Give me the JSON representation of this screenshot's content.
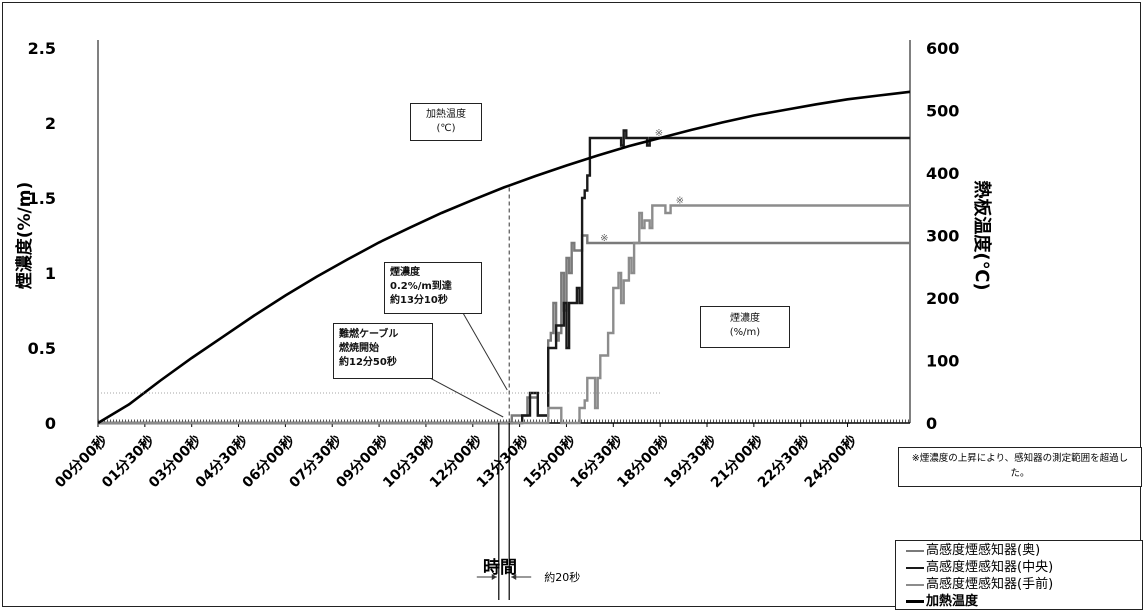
{
  "chart_data": {
    "type": "line",
    "title": "",
    "xlabel": "時間",
    "ylabel": "煙濃度(%/m)",
    "ylabel_right": "熱板温度(℃)",
    "ylim": [
      0,
      2.5
    ],
    "ylim_right": [
      0,
      600
    ],
    "y_ticks": [
      "0",
      "0.5",
      "1",
      "1.5",
      "2",
      "2.5"
    ],
    "y_ticks_right": [
      "0",
      "100",
      "200",
      "300",
      "400",
      "500",
      "600"
    ],
    "x_ticks": [
      "00分00秒",
      "01分30秒",
      "03分00秒",
      "04分30秒",
      "06分00秒",
      "07分30秒",
      "09分00秒",
      "10分30秒",
      "12分00秒",
      "13分30秒",
      "15分00秒",
      "16分30秒",
      "18分00秒",
      "19分30秒",
      "21分00秒",
      "22分30秒",
      "24分00秒"
    ],
    "x_range_seconds": [
      0,
      1560
    ],
    "grid": false,
    "legend_position": "bottom-right",
    "series": [
      {
        "name": "高感度煙感知器(奥)",
        "axis": "left",
        "color": "#7a7a7a",
        "points": [
          [
            0,
            0
          ],
          [
            790,
            0
          ],
          [
            795,
            0.05
          ],
          [
            820,
            0.05
          ],
          [
            825,
            0.17
          ],
          [
            840,
            0.17
          ],
          [
            845,
            0.05
          ],
          [
            860,
            0.05
          ],
          [
            865,
            0.55
          ],
          [
            870,
            0.6
          ],
          [
            875,
            0.8
          ],
          [
            880,
            0.55
          ],
          [
            885,
            0.6
          ],
          [
            890,
            1.0
          ],
          [
            895,
            0.75
          ],
          [
            900,
            1.1
          ],
          [
            905,
            1.0
          ],
          [
            910,
            1.2
          ],
          [
            915,
            1.15
          ],
          [
            925,
            1.15
          ],
          [
            930,
            1.25
          ],
          [
            940,
            1.2
          ],
          [
            950,
            1.2
          ],
          [
            955,
            1.2
          ],
          [
            1560,
            1.2
          ]
        ]
      },
      {
        "name": "高感度煙感知器(中央)",
        "axis": "left",
        "color": "#1a1a1a",
        "points": [
          [
            0,
            0
          ],
          [
            810,
            0
          ],
          [
            815,
            0.05
          ],
          [
            825,
            0.05
          ],
          [
            830,
            0.2
          ],
          [
            840,
            0.2
          ],
          [
            845,
            0.05
          ],
          [
            850,
            0.05
          ],
          [
            860,
            0.05
          ],
          [
            865,
            0.5
          ],
          [
            875,
            0.5
          ],
          [
            880,
            0.65
          ],
          [
            890,
            0.65
          ],
          [
            895,
            0.8
          ],
          [
            900,
            0.5
          ],
          [
            905,
            0.8
          ],
          [
            915,
            0.8
          ],
          [
            920,
            0.9
          ],
          [
            925,
            0.8
          ],
          [
            930,
            1.5
          ],
          [
            935,
            1.55
          ],
          [
            940,
            1.65
          ],
          [
            945,
            1.9
          ],
          [
            960,
            1.9
          ],
          [
            1000,
            1.9
          ],
          [
            1005,
            1.85
          ],
          [
            1010,
            1.95
          ],
          [
            1015,
            1.9
          ],
          [
            1050,
            1.9
          ],
          [
            1055,
            1.85
          ],
          [
            1060,
            1.9
          ],
          [
            1560,
            1.9
          ]
        ]
      },
      {
        "name": "高感度煙感知器(手前)",
        "axis": "left",
        "color": "#8c8c8c",
        "points": [
          [
            0,
            0
          ],
          [
            860,
            0
          ],
          [
            865,
            0.1
          ],
          [
            885,
            0.1
          ],
          [
            890,
            0.0
          ],
          [
            920,
            0.0
          ],
          [
            925,
            0.1
          ],
          [
            935,
            0.15
          ],
          [
            940,
            0.3
          ],
          [
            950,
            0.3
          ],
          [
            955,
            0.1
          ],
          [
            960,
            0.3
          ],
          [
            965,
            0.45
          ],
          [
            975,
            0.45
          ],
          [
            980,
            0.6
          ],
          [
            990,
            0.9
          ],
          [
            1000,
            1.0
          ],
          [
            1005,
            0.8
          ],
          [
            1010,
            0.95
          ],
          [
            1020,
            1.1
          ],
          [
            1025,
            1.0
          ],
          [
            1030,
            1.2
          ],
          [
            1040,
            1.4
          ],
          [
            1045,
            1.3
          ],
          [
            1050,
            1.35
          ],
          [
            1060,
            1.3
          ],
          [
            1065,
            1.45
          ],
          [
            1080,
            1.45
          ],
          [
            1090,
            1.4
          ],
          [
            1100,
            1.45
          ],
          [
            1560,
            1.45
          ]
        ]
      },
      {
        "name": "加熱温度",
        "axis": "right",
        "color": "#000000",
        "points": [
          [
            0,
            0
          ],
          [
            60,
            30
          ],
          [
            120,
            68
          ],
          [
            180,
            104
          ],
          [
            240,
            138
          ],
          [
            300,
            172
          ],
          [
            360,
            204
          ],
          [
            420,
            234
          ],
          [
            480,
            262
          ],
          [
            540,
            289
          ],
          [
            600,
            313
          ],
          [
            660,
            336
          ],
          [
            720,
            357
          ],
          [
            780,
            377
          ],
          [
            840,
            395
          ],
          [
            900,
            412
          ],
          [
            960,
            428
          ],
          [
            1020,
            443
          ],
          [
            1080,
            456
          ],
          [
            1140,
            469
          ],
          [
            1200,
            481
          ],
          [
            1260,
            492
          ],
          [
            1320,
            501
          ],
          [
            1380,
            510
          ],
          [
            1440,
            518
          ],
          [
            1500,
            524
          ],
          [
            1560,
            530
          ]
        ]
      }
    ],
    "boxes": {
      "heat_temp": [
        "加熱温度",
        "(℃)"
      ],
      "smoke_density": [
        "煙濃度",
        "(%/m)"
      ],
      "smoke_reach": [
        "煙濃度",
        "0.2%/m到達",
        "約13分10秒"
      ],
      "cable_start": [
        "難燃ケーブル",
        "燃焼開始",
        "約12分50秒"
      ]
    },
    "note": "※煙濃度の上昇により、感知器の測定範囲を超過した。",
    "interval_label": "約20秒"
  }
}
